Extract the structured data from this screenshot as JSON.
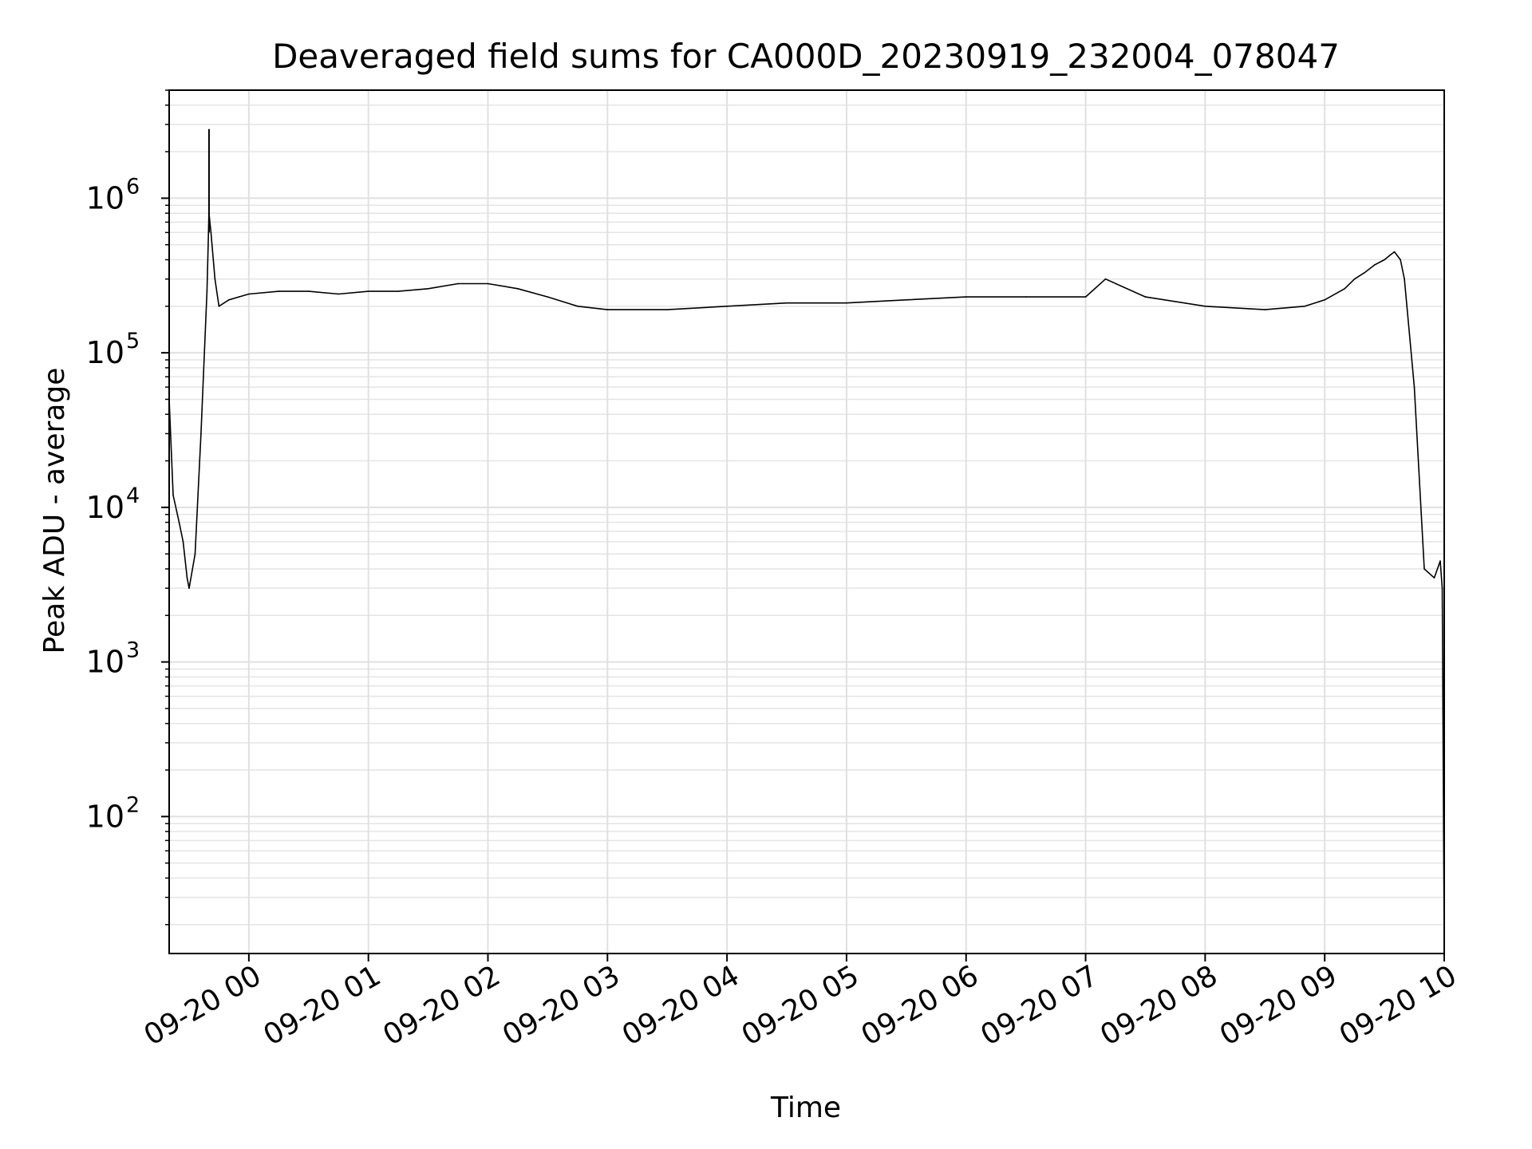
{
  "chart_data": {
    "type": "line",
    "title": "Deaveraged field sums for CA000D_20230919_232004_078047",
    "xlabel": "Time",
    "ylabel": "Peak ADU - average",
    "y_scale": "log",
    "ylim": [
      13,
      5000000
    ],
    "xlim": [
      "2023-09-19 23:20",
      "2023-09-20 10:00"
    ],
    "grid": true,
    "legend": "none",
    "x_ticks": [
      "09-20 00",
      "09-20 01",
      "09-20 02",
      "09-20 03",
      "09-20 04",
      "09-20 05",
      "09-20 06",
      "09-20 07",
      "09-20 08",
      "09-20 09",
      "09-20 10"
    ],
    "y_ticks": [
      {
        "value": 100,
        "base": "10",
        "exp": "2"
      },
      {
        "value": 1000,
        "base": "10",
        "exp": "3"
      },
      {
        "value": 10000,
        "base": "10",
        "exp": "4"
      },
      {
        "value": 100000,
        "base": "10",
        "exp": "5"
      },
      {
        "value": 1000000,
        "base": "10",
        "exp": "6"
      }
    ],
    "series": [
      {
        "color": "#000000",
        "x": [
          "2023-09-19 23:20",
          "2023-09-19 23:22",
          "2023-09-19 23:25",
          "2023-09-19 23:27",
          "2023-09-19 23:29",
          "2023-09-19 23:30",
          "2023-09-19 23:33",
          "2023-09-19 23:36",
          "2023-09-19 23:39",
          "2023-09-19 23:40",
          "2023-09-19 23:41",
          "2023-09-19 23:43",
          "2023-09-19 23:45",
          "2023-09-19 23:50",
          "2023-09-19 23:55",
          "2023-09-20 00:00",
          "2023-09-20 00:15",
          "2023-09-20 00:30",
          "2023-09-20 00:45",
          "2023-09-20 01:00",
          "2023-09-20 01:15",
          "2023-09-20 01:30",
          "2023-09-20 01:45",
          "2023-09-20 02:00",
          "2023-09-20 02:15",
          "2023-09-20 02:30",
          "2023-09-20 02:45",
          "2023-09-20 03:00",
          "2023-09-20 03:30",
          "2023-09-20 04:00",
          "2023-09-20 04:30",
          "2023-09-20 05:00",
          "2023-09-20 05:30",
          "2023-09-20 06:00",
          "2023-09-20 06:30",
          "2023-09-20 07:00",
          "2023-09-20 07:10",
          "2023-09-20 07:30",
          "2023-09-20 08:00",
          "2023-09-20 08:30",
          "2023-09-20 08:50",
          "2023-09-20 09:00",
          "2023-09-20 09:10",
          "2023-09-20 09:15",
          "2023-09-20 09:20",
          "2023-09-20 09:25",
          "2023-09-20 09:30",
          "2023-09-20 09:33",
          "2023-09-20 09:35",
          "2023-09-20 09:38",
          "2023-09-20 09:40",
          "2023-09-20 09:45",
          "2023-09-20 09:50",
          "2023-09-20 09:55",
          "2023-09-20 09:58",
          "2023-09-20 09:59",
          "2023-09-20 10:00"
        ],
        "y": [
          50000,
          12000,
          8000,
          6000,
          3500,
          3000,
          5000,
          30000,
          250000,
          800000,
          600000,
          300000,
          200000,
          220000,
          230000,
          240000,
          250000,
          250000,
          240000,
          250000,
          250000,
          260000,
          280000,
          280000,
          260000,
          230000,
          200000,
          190000,
          190000,
          200000,
          210000,
          210000,
          220000,
          230000,
          230000,
          230000,
          300000,
          230000,
          200000,
          190000,
          200000,
          220000,
          260000,
          300000,
          330000,
          370000,
          400000,
          430000,
          450000,
          400000,
          300000,
          60000,
          4000,
          3500,
          4500,
          3000,
          15
        ]
      }
    ],
    "annotations": [
      {
        "x": "2023-09-19 23:40",
        "y": 2800000,
        "text": ""
      }
    ]
  }
}
